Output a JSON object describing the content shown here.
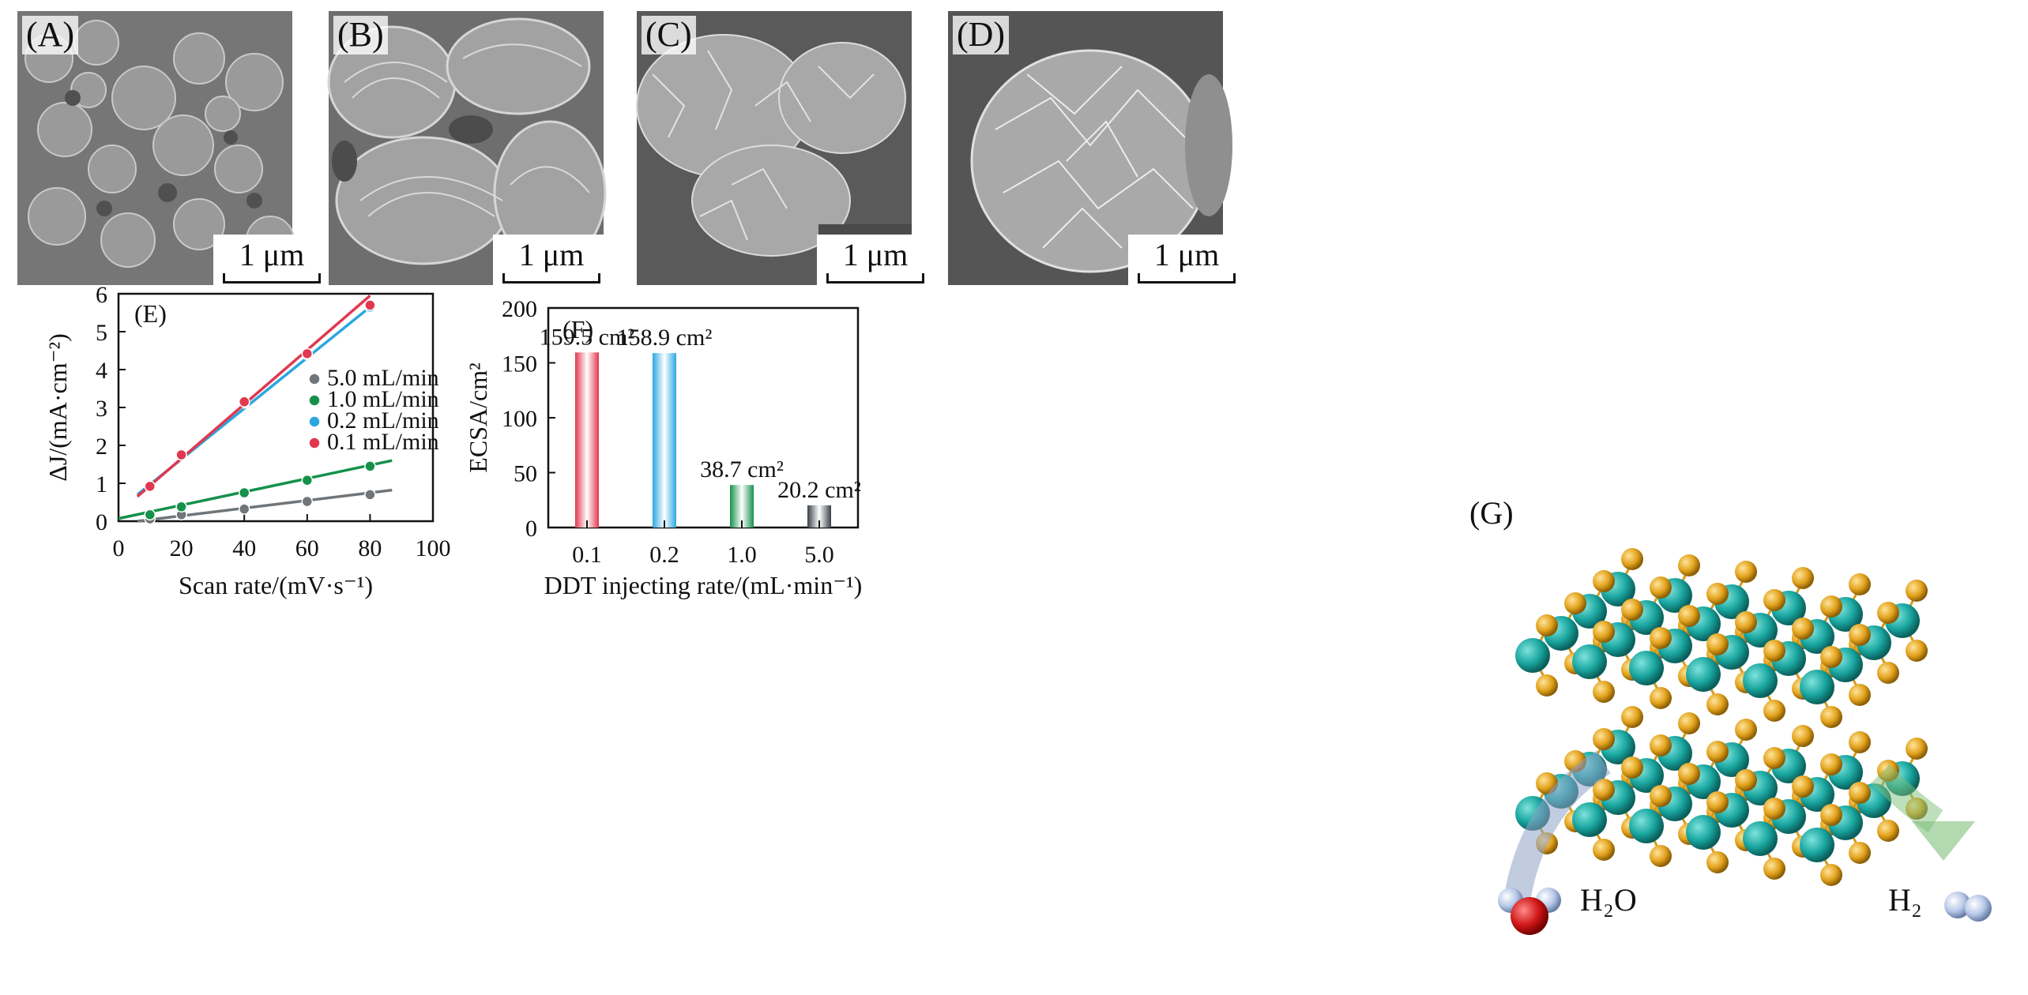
{
  "panels": {
    "a": {
      "letter": "(A)",
      "scale": "1 μm"
    },
    "b": {
      "letter": "(B)",
      "scale": "1 μm"
    },
    "c": {
      "letter": "(C)",
      "scale": "1 μm"
    },
    "d": {
      "letter": "(D)",
      "scale": "1 μm"
    },
    "g": {
      "letter": "(G)",
      "h2o": "H₂O",
      "h2": "H₂"
    }
  },
  "colors": {
    "red": "#e0384f",
    "blue": "#2aa7e0",
    "green": "#15914a",
    "gray": "#6f7579",
    "mo": "#1aa6a0",
    "s": "#e2a21c"
  },
  "chart_data": [
    {
      "type": "scatter",
      "panel_label": "(E)",
      "xlabel": "Scan rate/(mV·s⁻¹)",
      "ylabel": "ΔJ/(mA·cm⁻²)",
      "xlim": [
        0,
        100
      ],
      "ylim": [
        0,
        6
      ],
      "xticks": [
        "0",
        "20",
        "40",
        "60",
        "80",
        "100"
      ],
      "yticks": [
        "0",
        "1",
        "2",
        "3",
        "4",
        "5",
        "6"
      ],
      "legend_position": "right",
      "series": [
        {
          "name": "5.0 mL/min",
          "color": "#6f7579",
          "x": [
            10,
            20,
            40,
            60,
            80
          ],
          "y": [
            0.06,
            0.17,
            0.32,
            0.52,
            0.7
          ],
          "fit_x": [
            6,
            87
          ],
          "fit_y": [
            0.0,
            0.82
          ]
        },
        {
          "name": "1.0 mL/min",
          "color": "#15914a",
          "x": [
            10,
            20,
            40,
            60,
            80
          ],
          "y": [
            0.17,
            0.38,
            0.75,
            1.08,
            1.45
          ],
          "fit_x": [
            0,
            87
          ],
          "fit_y": [
            0.07,
            1.6
          ]
        },
        {
          "name": "0.2 mL/min",
          "color": "#2aa7e0",
          "x": [
            10,
            20,
            40,
            60,
            80
          ],
          "y": [
            0.9,
            1.72,
            3.12,
            4.4,
            5.65
          ],
          "fit_x": [
            6,
            80
          ],
          "fit_y": [
            0.7,
            5.65
          ]
        },
        {
          "name": "0.1 mL/min",
          "color": "#e0384f",
          "x": [
            10,
            20,
            40,
            60,
            80
          ],
          "y": [
            0.92,
            1.75,
            3.15,
            4.42,
            5.7
          ],
          "fit_x": [
            6,
            80
          ],
          "fit_y": [
            0.65,
            5.95
          ]
        }
      ]
    },
    {
      "type": "bar",
      "panel_label": "(F)",
      "xlabel": "DDT injecting rate/(mL·min⁻¹)",
      "ylabel": "ECSA/cm²",
      "ylim": [
        0,
        200
      ],
      "yticks": [
        "0",
        "50",
        "100",
        "150",
        "200"
      ],
      "categories": [
        "0.1",
        "0.2",
        "1.0",
        "5.0"
      ],
      "values": [
        159.5,
        158.9,
        38.7,
        20.2
      ],
      "value_labels": [
        "159.5 cm²",
        "158.9 cm²",
        "38.7 cm²",
        "20.2 cm²"
      ],
      "colors": [
        "#e0384f",
        "#2aa7e0",
        "#15914a",
        "#3a4046"
      ]
    }
  ]
}
